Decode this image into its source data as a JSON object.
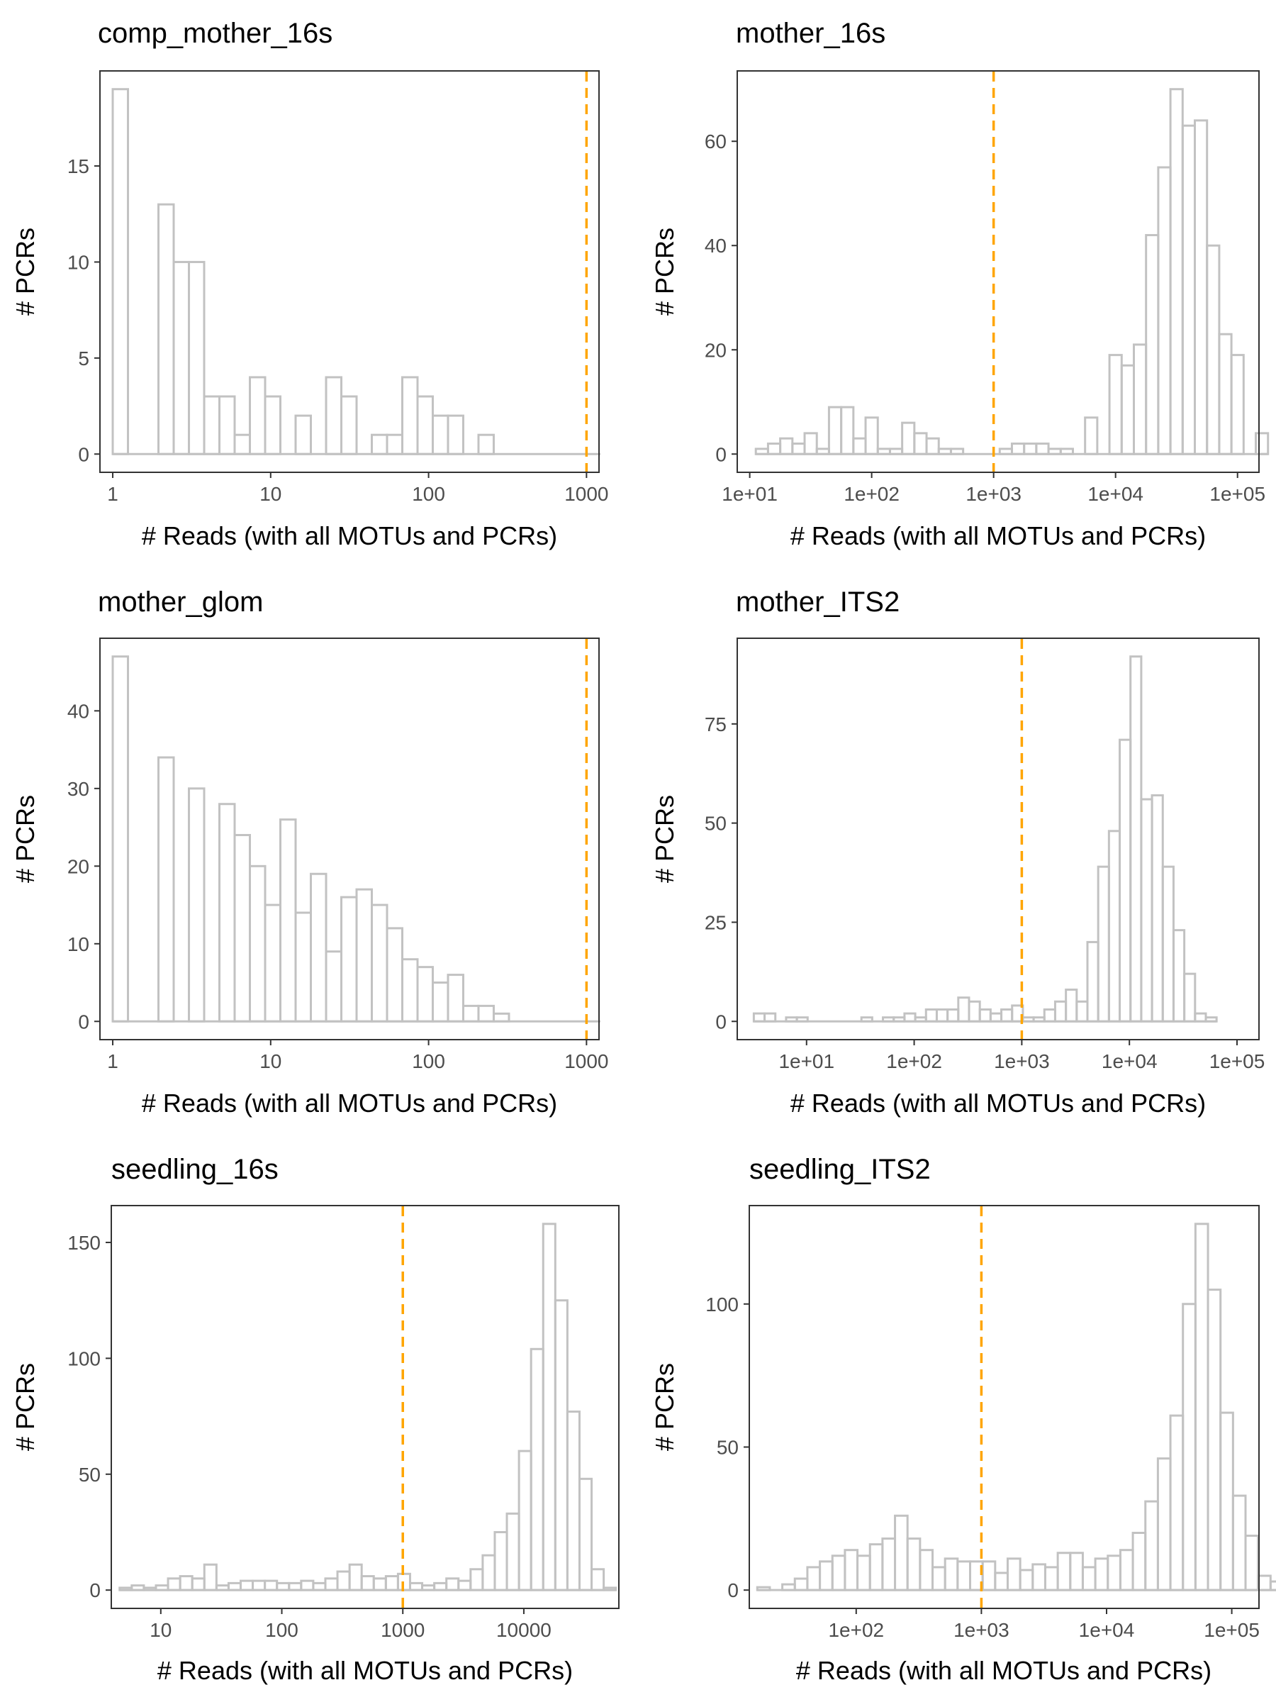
{
  "colors": {
    "bar_outline": "#c2c2c2",
    "cutoff_line": "#ffa500",
    "frame": "#333333"
  },
  "chart_data": [
    {
      "type": "bar",
      "title": "comp_mother_16s",
      "xlabel": "# Reads (with all MOTUs and PCRs)",
      "ylabel": "# PCRs",
      "x_scale": "log10",
      "xlim": [
        0.83,
        1200
      ],
      "ylim": [
        -0.95,
        19.95
      ],
      "x_ticks": [
        1,
        10,
        100,
        1000
      ],
      "x_tick_labels": [
        "1",
        "10",
        "100",
        "1000"
      ],
      "y_ticks": [
        0,
        5,
        10,
        15
      ],
      "y_tick_labels": [
        "0",
        "5",
        "10",
        "15"
      ],
      "bins_log10_start": 0,
      "bins_log10_width": 0.0965,
      "counts": [
        19,
        0,
        0,
        13,
        10,
        10,
        3,
        3,
        1,
        4,
        3,
        0,
        2,
        0,
        4,
        3,
        0,
        1,
        1,
        4,
        3,
        2,
        2,
        0,
        1,
        0,
        0,
        0,
        0,
        0,
        0,
        0
      ],
      "cutoff": 1000,
      "grid": false
    },
    {
      "type": "bar",
      "title": "mother_16s",
      "xlabel": "# Reads (with all MOTUs and PCRs)",
      "ylabel": "# PCRs",
      "x_scale": "log10",
      "xlim": [
        7.9,
        150000
      ],
      "ylim": [
        -3.5,
        73.5
      ],
      "x_ticks": [
        10,
        100,
        1000,
        10000,
        100000
      ],
      "x_tick_labels": [
        "1e+01",
        "1e+02",
        "1e+03",
        "1e+04",
        "1e+05"
      ],
      "y_ticks": [
        0,
        20,
        40,
        60
      ],
      "y_tick_labels": [
        "0",
        "20",
        "40",
        "60"
      ],
      "bins_log10_start": 1.05,
      "bins_log10_width": 0.1,
      "counts": [
        1,
        2,
        3,
        2,
        4,
        1,
        9,
        9,
        3,
        7,
        1,
        1,
        6,
        4,
        3,
        1,
        1,
        0,
        0,
        0,
        1,
        2,
        2,
        2,
        1,
        1,
        0,
        7,
        0,
        19,
        17,
        21,
        42,
        55,
        70,
        63,
        64,
        40,
        23,
        19,
        0,
        4
      ],
      "cutoff": 1000,
      "grid": false
    },
    {
      "type": "bar",
      "title": "mother_glom",
      "xlabel": "# Reads (with all MOTUs and PCRs)",
      "ylabel": "# PCRs",
      "x_scale": "log10",
      "xlim": [
        0.83,
        1200
      ],
      "ylim": [
        -2.35,
        49.35
      ],
      "x_ticks": [
        1,
        10,
        100,
        1000
      ],
      "x_tick_labels": [
        "1",
        "10",
        "100",
        "1000"
      ],
      "y_ticks": [
        0,
        10,
        20,
        30,
        40
      ],
      "y_tick_labels": [
        "0",
        "10",
        "20",
        "30",
        "40"
      ],
      "bins_log10_start": 0,
      "bins_log10_width": 0.0965,
      "counts": [
        47,
        0,
        0,
        34,
        0,
        30,
        0,
        28,
        24,
        20,
        15,
        26,
        14,
        19,
        9,
        16,
        17,
        15,
        12,
        8,
        7,
        5,
        6,
        2,
        2,
        1,
        0,
        0,
        0,
        0,
        0,
        0
      ],
      "cutoff": 1000,
      "grid": false
    },
    {
      "type": "bar",
      "title": "mother_ITS2",
      "xlabel": "# Reads (with all MOTUs and PCRs)",
      "ylabel": "# PCRs",
      "x_scale": "log10",
      "xlim": [
        2.27,
        160000
      ],
      "ylim": [
        -4.6,
        96.6
      ],
      "x_ticks": [
        10,
        100,
        1000,
        10000,
        100000
      ],
      "x_tick_labels": [
        "1e+01",
        "1e+02",
        "1e+03",
        "1e+04",
        "1e+05"
      ],
      "y_ticks": [
        0,
        25,
        50,
        75
      ],
      "y_tick_labels": [
        "0",
        "25",
        "50",
        "75"
      ],
      "bins_log10_start": 0.51,
      "bins_log10_width": 0.1,
      "counts": [
        2,
        2,
        0,
        1,
        1,
        0,
        0,
        0,
        0,
        0,
        1,
        0,
        1,
        1,
        2,
        1,
        3,
        3,
        3,
        6,
        5,
        3,
        2,
        3,
        4,
        1,
        1,
        3,
        5,
        8,
        5,
        20,
        39,
        48,
        71,
        92,
        56,
        57,
        39,
        23,
        12,
        2,
        1
      ],
      "cutoff": 1000,
      "grid": false
    },
    {
      "type": "bar",
      "title": "seedling_16s",
      "xlabel": "# Reads (with all MOTUs and PCRs)",
      "ylabel": "# PCRs",
      "x_scale": "log10",
      "xlim": [
        3.9,
        61000
      ],
      "ylim": [
        -7.9,
        165.9
      ],
      "x_ticks": [
        10,
        100,
        1000,
        10000
      ],
      "x_tick_labels": [
        "10",
        "100",
        "1000",
        "10000"
      ],
      "y_ticks": [
        0,
        50,
        100,
        150
      ],
      "y_tick_labels": [
        "0",
        "50",
        "100",
        "150"
      ],
      "bins_log10_start": 0.66,
      "bins_log10_width": 0.1,
      "counts": [
        1,
        2,
        1,
        2,
        5,
        6,
        5,
        11,
        2,
        3,
        4,
        4,
        4,
        3,
        3,
        4,
        3,
        5,
        8,
        11,
        6,
        5,
        6,
        7,
        3,
        2,
        3,
        5,
        4,
        9,
        15,
        25,
        33,
        60,
        104,
        158,
        125,
        77,
        48,
        9,
        1
      ],
      "cutoff": 1000,
      "grid": false
    },
    {
      "type": "bar",
      "title": "seedling_ITS2",
      "xlabel": "# Reads (with all MOTUs and PCRs)",
      "ylabel": "# PCRs",
      "x_scale": "log10",
      "xlim": [
        14,
        165000
      ],
      "ylim": [
        -6.4,
        134.4
      ],
      "x_ticks": [
        100,
        1000,
        10000,
        100000
      ],
      "x_tick_labels": [
        "1e+02",
        "1e+03",
        "1e+04",
        "1e+05"
      ],
      "y_ticks": [
        0,
        50,
        100
      ],
      "y_tick_labels": [
        "0",
        "50",
        "100"
      ],
      "bins_log10_start": 1.21,
      "bins_log10_width": 0.1,
      "counts": [
        1,
        0,
        2,
        4,
        8,
        10,
        12,
        14,
        12,
        16,
        18,
        26,
        18,
        14,
        8,
        11,
        10,
        10,
        10,
        6,
        11,
        7,
        9,
        8,
        13,
        13,
        8,
        11,
        12,
        14,
        20,
        31,
        46,
        61,
        100,
        128,
        105,
        62,
        33,
        19,
        5,
        3,
        1,
        1
      ],
      "cutoff": 1000,
      "grid": false
    }
  ]
}
